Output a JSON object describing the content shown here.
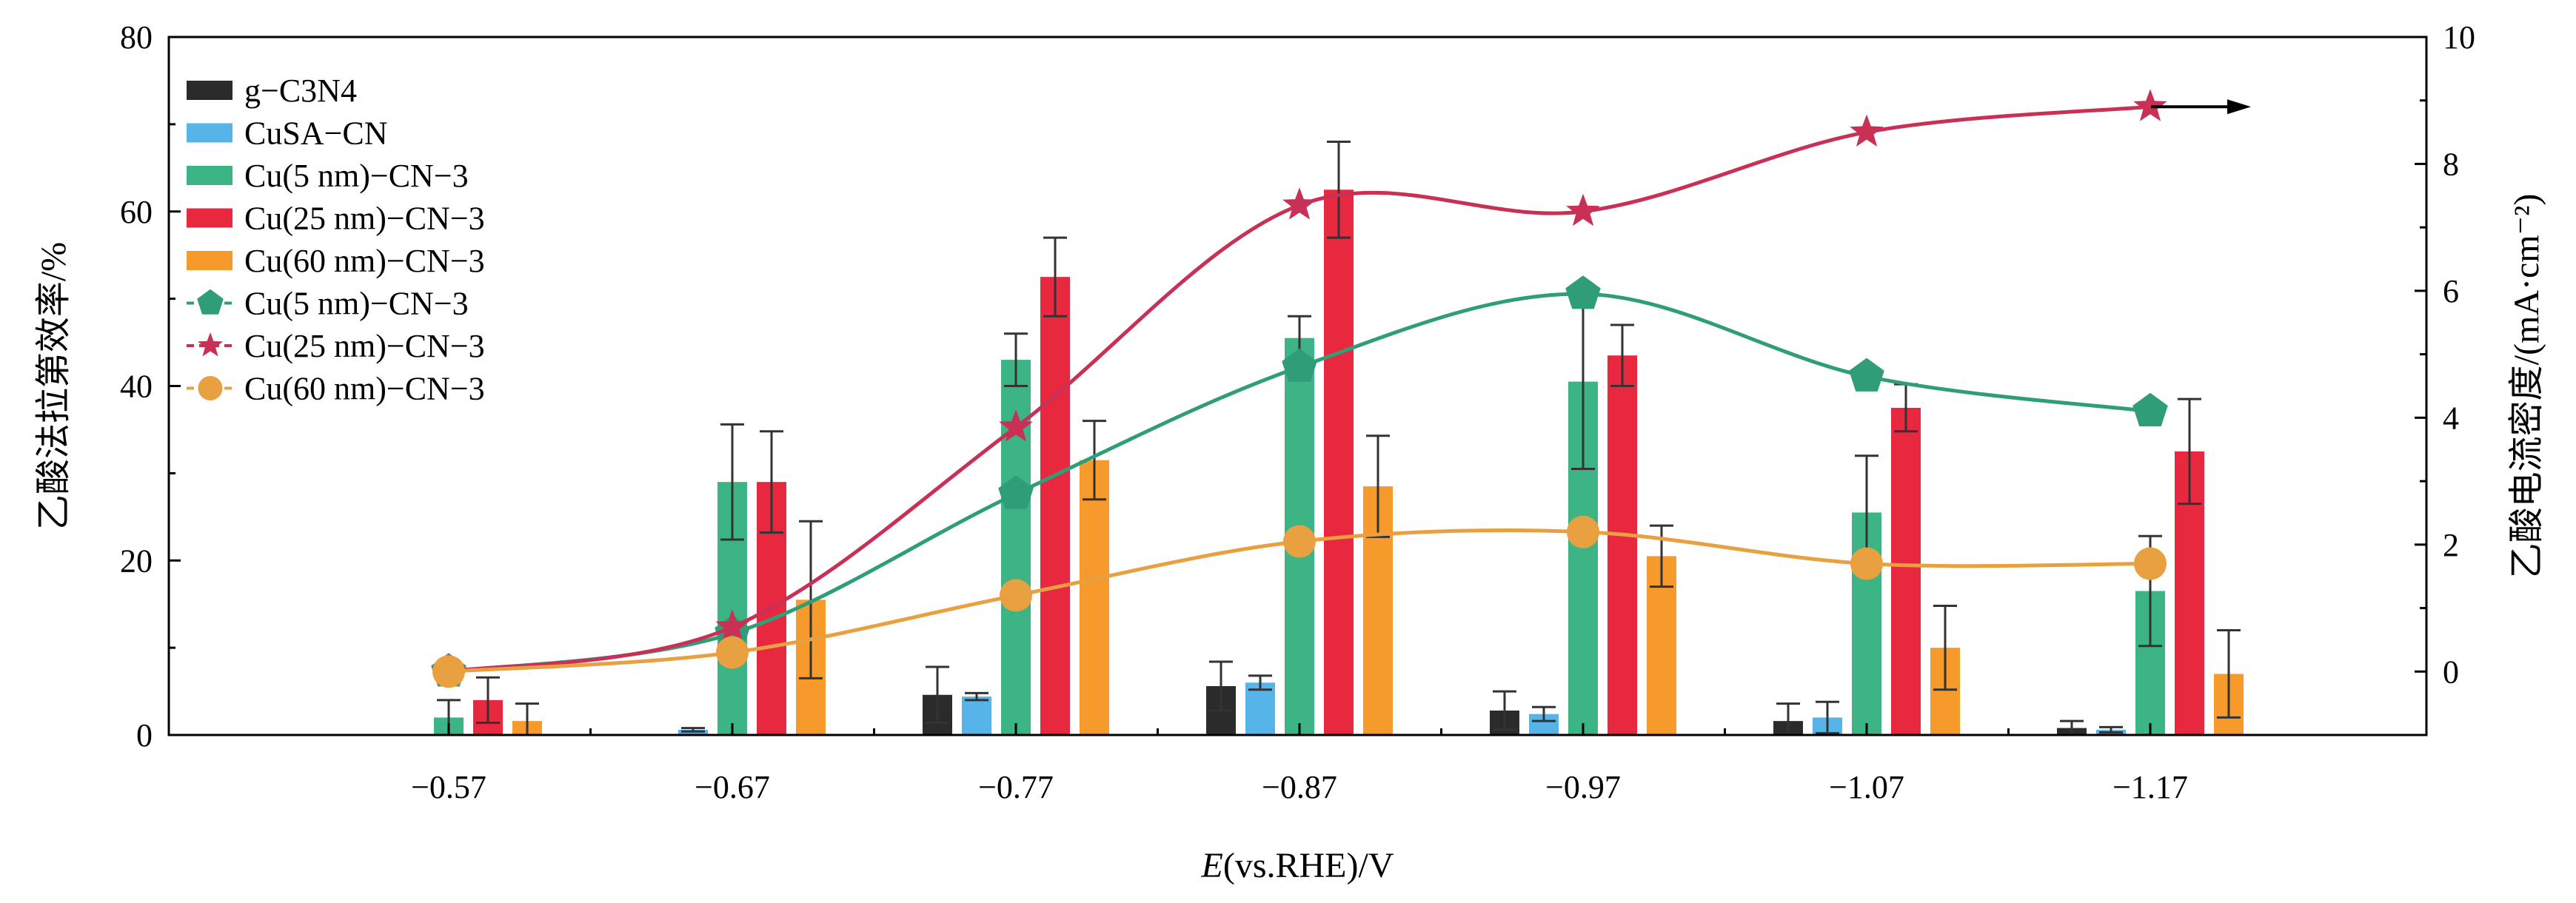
{
  "chart_data": {
    "type": "bar",
    "xlabel_italic": "E",
    "xlabel_rest": "(vs.RHE)/V",
    "ylabel": "乙酸法拉第效率/%",
    "y2label": "乙酸电流密度/(mA·cm⁻²)",
    "categories": [
      "−0.57",
      "−0.67",
      "−0.77",
      "−0.87",
      "−0.97",
      "−1.07",
      "−1.17"
    ],
    "ylim": [
      0,
      80
    ],
    "y_ticks": [
      "0",
      "20",
      "40",
      "60",
      "80"
    ],
    "y2lim": [
      -1,
      10
    ],
    "y2_ticks": [
      "0",
      "2",
      "4",
      "6",
      "8",
      "10"
    ],
    "arrow_marker": "→",
    "bar_series": [
      {
        "name": "g−C3N4",
        "color": "#2b2b2b",
        "values": [
          0,
          0,
          4.6,
          5.6,
          2.8,
          1.6,
          0.8
        ],
        "errors": [
          0,
          0,
          3.2,
          2.8,
          2.2,
          2.0,
          0.8
        ]
      },
      {
        "name": "CuSA−CN",
        "color": "#56b4e9",
        "values": [
          0,
          0.6,
          4.4,
          6.0,
          2.4,
          2.0,
          0.6
        ],
        "errors": [
          0,
          0.2,
          0.4,
          0.8,
          0.8,
          1.8,
          0.3
        ]
      },
      {
        "name": "Cu(5 nm)−CN−3",
        "color": "#3cb486",
        "values": [
          2.0,
          29.0,
          43.0,
          45.5,
          40.5,
          25.5,
          16.5
        ],
        "errors": [
          2.0,
          6.6,
          3.0,
          2.5,
          10.0,
          6.5,
          6.3
        ]
      },
      {
        "name": "Cu(25 nm)−CN−3",
        "color": "#e8283f",
        "values": [
          4.0,
          29.0,
          52.5,
          62.5,
          43.5,
          37.5,
          32.5
        ],
        "errors": [
          2.6,
          5.8,
          4.5,
          5.5,
          3.5,
          2.7,
          6.0
        ]
      },
      {
        "name": "Cu(60 nm)−CN−3",
        "color": "#f59a2b",
        "values": [
          1.6,
          15.5,
          31.5,
          28.5,
          20.5,
          10.0,
          7.0
        ],
        "errors": [
          2.0,
          9.0,
          4.5,
          5.8,
          3.5,
          4.8,
          5.0
        ]
      }
    ],
    "line_series": [
      {
        "name": "Cu(5 nm)−CN−3",
        "color": "#2f9e78",
        "marker": "pentagon",
        "values": [
          0.0,
          0.6,
          2.8,
          4.8,
          5.95,
          4.65,
          4.1
        ]
      },
      {
        "name": "Cu(25 nm)−CN−3",
        "color": "#c93055",
        "marker": "star",
        "values": [
          0.0,
          0.7,
          3.85,
          7.35,
          7.25,
          8.5,
          8.9
        ]
      },
      {
        "name": "Cu(60 nm)−CN−3",
        "color": "#e8a040",
        "marker": "circle",
        "values": [
          0.0,
          0.3,
          1.2,
          2.05,
          2.2,
          1.7,
          1.7
        ]
      }
    ]
  }
}
